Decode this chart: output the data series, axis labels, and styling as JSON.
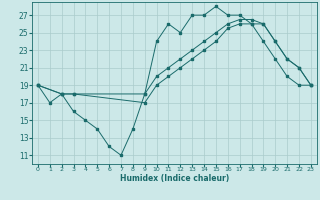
{
  "xlabel": "Humidex (Indice chaleur)",
  "bg_color": "#cce8e8",
  "grid_color": "#aacccc",
  "line_color": "#1a6b6b",
  "xlim": [
    -0.5,
    23.5
  ],
  "ylim": [
    10.0,
    28.5
  ],
  "xticks": [
    0,
    1,
    2,
    3,
    4,
    5,
    6,
    7,
    8,
    9,
    10,
    11,
    12,
    13,
    14,
    15,
    16,
    17,
    18,
    19,
    20,
    21,
    22,
    23
  ],
  "yticks": [
    11,
    13,
    15,
    17,
    19,
    21,
    23,
    25,
    27
  ],
  "series": [
    {
      "x": [
        0,
        1,
        2,
        3,
        4,
        5,
        6,
        7,
        8,
        9,
        10,
        11,
        12,
        13,
        14,
        15,
        16,
        17,
        18,
        19,
        20,
        21,
        22,
        23
      ],
      "y": [
        19,
        17,
        18,
        16,
        15,
        14,
        12,
        11,
        14,
        18,
        24,
        26,
        25,
        27,
        27,
        28,
        27,
        27,
        26,
        24,
        22,
        20,
        19,
        19
      ]
    },
    {
      "x": [
        0,
        2,
        3,
        9,
        10,
        11,
        12,
        13,
        14,
        15,
        16,
        17,
        18,
        19,
        20,
        21,
        22,
        23
      ],
      "y": [
        19,
        18,
        18,
        18,
        20,
        21,
        22,
        23,
        24,
        25,
        26,
        26.5,
        26.5,
        26,
        24,
        22,
        21,
        19
      ]
    },
    {
      "x": [
        0,
        2,
        3,
        9,
        10,
        11,
        12,
        13,
        14,
        15,
        16,
        17,
        18,
        19,
        20,
        21,
        22,
        23
      ],
      "y": [
        19,
        18,
        18,
        17,
        19,
        20,
        21,
        22,
        23,
        24,
        25.5,
        26,
        26,
        26,
        24,
        22,
        21,
        19
      ]
    }
  ]
}
